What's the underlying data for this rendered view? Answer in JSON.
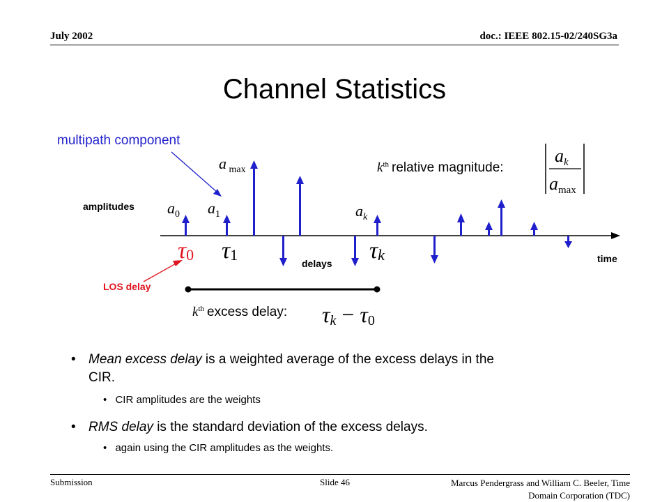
{
  "header": {
    "date": "July 2002",
    "doc": "doc.: IEEE 802.15-02/240SG3a"
  },
  "slide_title": "Channel Statistics",
  "diagram": {
    "multipath_label": "multipath component",
    "amplitudes_label": "amplitudes",
    "delays_label": "delays",
    "time_label": "time",
    "los_label": "LOS delay",
    "relative_magnitude_label": "relative magnitude:",
    "excess_delay_label": "excess delay:",
    "kth_k": "k",
    "kth_th": "th",
    "colors": {
      "impulse": "#1f1fcc",
      "axis": "#000000",
      "annotation": "#e0141e",
      "callout": "#1f1fcc"
    }
  },
  "bullets": [
    {
      "italic": "Mean excess delay",
      "text": " is a weighted average of the excess delays in the",
      "text2": "CIR.",
      "sub": "CIR amplitudes are the weights"
    },
    {
      "italic": "RMS delay",
      "text": " is the standard deviation of the excess delays.",
      "sub": "again using the CIR amplitudes as the weights."
    }
  ],
  "footer": {
    "left": "Submission",
    "center": "Slide 46",
    "right_line1": "Marcus Pendergrass and William  C. Beeler, Time",
    "right_line2": "Domain Corporation (TDC)"
  }
}
